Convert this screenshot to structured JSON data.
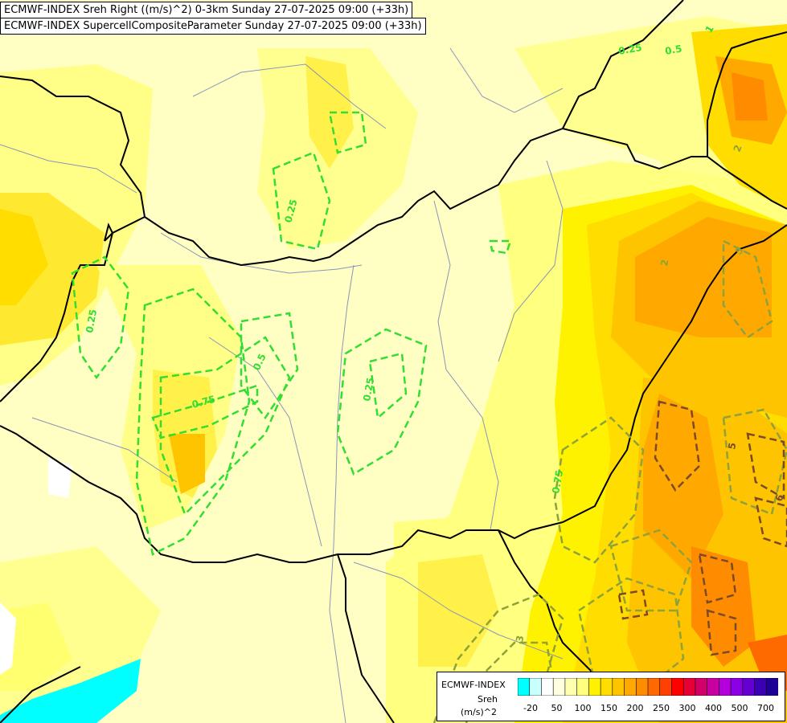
{
  "titles": {
    "line1": "ECMWF-INDEX Sreh Right ((m/s)^2) 0-3km Sunday 27-07-2025 09:00 (+33h)",
    "line2": "ECMWF-INDEX SupercellCompositeParameter Sunday 27-07-2025 09:00 (+33h)"
  },
  "legend": {
    "model": "ECMWF-INDEX",
    "variable": "Sreh",
    "unit": "(m/s)^2",
    "colors": [
      "#00ffff",
      "#c8ffff",
      "#ffffff",
      "#ffffe0",
      "#ffffb0",
      "#ffff80",
      "#fff200",
      "#ffdd00",
      "#ffc400",
      "#ffa800",
      "#ff8c00",
      "#ff6a00",
      "#ff4000",
      "#ff0000",
      "#e60033",
      "#d4006a",
      "#c800a0",
      "#b400dc",
      "#8c00e6",
      "#6400d2",
      "#3c00b4",
      "#1e0096"
    ],
    "tick_labels": [
      "-20",
      "50",
      "100",
      "150",
      "200",
      "250",
      "300",
      "400",
      "500",
      "700"
    ]
  },
  "contour_labels": [
    "0.25",
    "0.25",
    "0.25",
    "0.25",
    "0.5",
    "0.5",
    "0.75",
    "0.75",
    "1",
    "2",
    "2",
    "3",
    "5",
    "5",
    "6"
  ],
  "colors": {
    "contour_low": "#33dd33",
    "contour_mid": "#8fa23a",
    "contour_high": "#7a4a2a",
    "border": "#000000",
    "river": "#8a95b8"
  }
}
